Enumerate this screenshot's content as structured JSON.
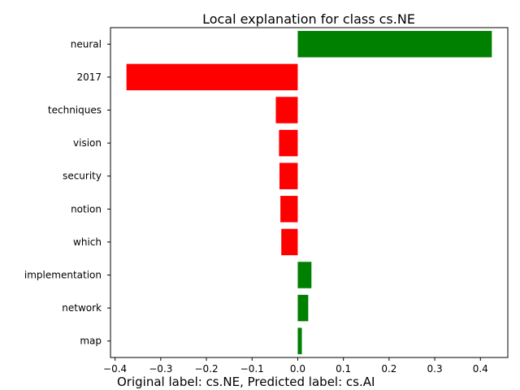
{
  "chart_data": {
    "type": "bar",
    "orientation": "horizontal",
    "title": "Local explanation for class cs.NE",
    "caption": "Original label: cs.NE, Predicted label: cs.AI",
    "categories": [
      "neural",
      "2017",
      "techniques",
      "vision",
      "security",
      "notion",
      "which",
      "implementation",
      "network",
      "map"
    ],
    "values": [
      0.425,
      -0.375,
      -0.048,
      -0.041,
      -0.04,
      -0.038,
      -0.036,
      0.03,
      0.023,
      0.009
    ],
    "xlim": [
      -0.41,
      0.46
    ],
    "xticks": [
      -0.4,
      -0.3,
      -0.2,
      -0.1,
      0.0,
      0.1,
      0.2,
      0.3,
      0.4
    ],
    "xtick_labels": [
      "−0.4",
      "−0.3",
      "−0.2",
      "−0.1",
      "0.0",
      "0.1",
      "0.2",
      "0.3",
      "0.4"
    ],
    "xlabel": "",
    "ylabel": "",
    "grid": false,
    "colors": {
      "positive": "#008000",
      "negative": "#ff0000",
      "axis": "#000000"
    }
  }
}
